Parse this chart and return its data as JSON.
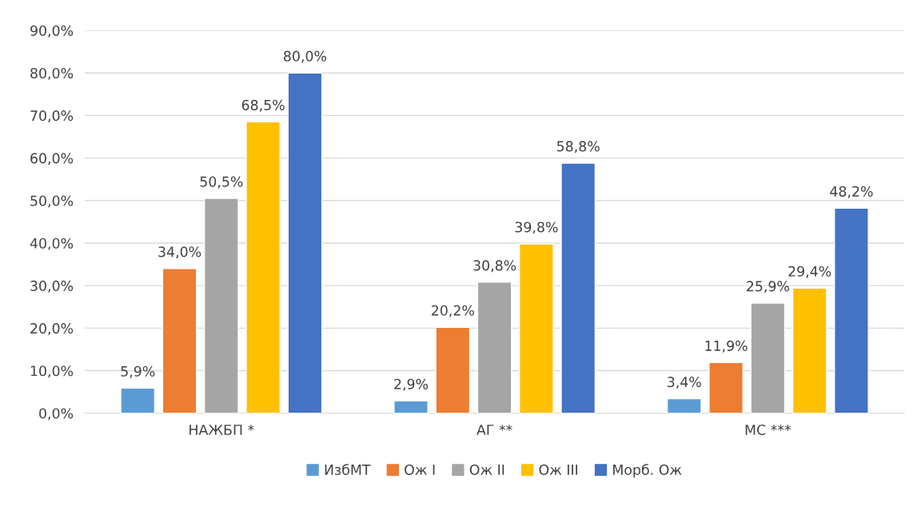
{
  "chart_data": {
    "type": "bar",
    "categories": [
      "НАЖБП *",
      "АГ **",
      "МС ***"
    ],
    "series": [
      {
        "name": "ИзбМТ",
        "color": "#5b9bd5",
        "values": [
          5.9,
          2.9,
          3.4
        ],
        "value_labels": [
          "5,9%",
          "2,9%",
          "3,4%"
        ]
      },
      {
        "name": "Ож I",
        "color": "#ed7d31",
        "values": [
          34.0,
          20.2,
          11.9
        ],
        "value_labels": [
          "34,0%",
          "20,2%",
          "11,9%"
        ]
      },
      {
        "name": "Ож II",
        "color": "#a5a5a5",
        "values": [
          50.5,
          30.8,
          25.9
        ],
        "value_labels": [
          "50,5%",
          "30,8%",
          "25,9%"
        ]
      },
      {
        "name": "Ож III",
        "color": "#ffc000",
        "values": [
          68.5,
          39.8,
          29.4
        ],
        "value_labels": [
          "68,5%",
          "39,8%",
          "29,4%"
        ]
      },
      {
        "name": "Морб. Ож",
        "color": "#4472c4",
        "values": [
          80.0,
          58.8,
          48.2
        ],
        "value_labels": [
          "80,0%",
          "58,8%",
          "48,2%"
        ]
      }
    ],
    "ylim": [
      0,
      90
    ],
    "yticks": [
      {
        "value": 0,
        "label": "0,0%"
      },
      {
        "value": 10,
        "label": "10,0%"
      },
      {
        "value": 20,
        "label": "20,0%"
      },
      {
        "value": 30,
        "label": "30,0%"
      },
      {
        "value": 40,
        "label": "40,0%"
      },
      {
        "value": 50,
        "label": "50,0%"
      },
      {
        "value": 60,
        "label": "60,0%"
      },
      {
        "value": 70,
        "label": "70,0%"
      },
      {
        "value": 80,
        "label": "80,0%"
      },
      {
        "value": 90,
        "label": "90,0%"
      }
    ],
    "grid": "y",
    "legend": "bottom"
  }
}
